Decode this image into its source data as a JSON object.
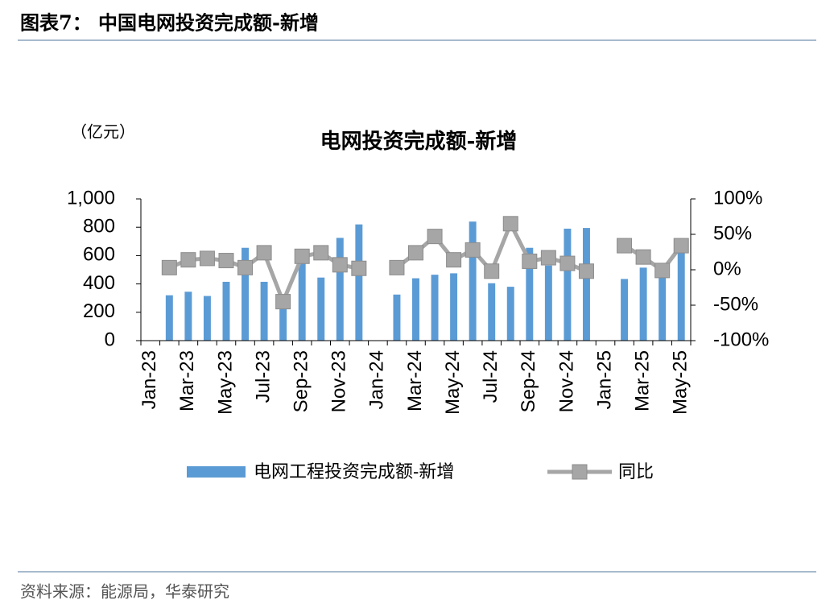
{
  "header": {
    "title": "图表7：  中国电网投资完成额-新增"
  },
  "chart_data": {
    "type": "bar-line",
    "title": "电网投资完成额-新增",
    "y_label": "（亿元）",
    "categories": [
      "Jan-23",
      null,
      "Mar-23",
      null,
      "May-23",
      null,
      "Jul-23",
      null,
      "Sep-23",
      null,
      "Nov-23",
      null,
      "Jan-24",
      null,
      "Mar-24",
      null,
      "May-24",
      null,
      "Jul-24",
      null,
      "Sep-24",
      null,
      "Nov-24",
      null,
      "Jan-25",
      null,
      "Mar-25",
      null,
      "May-25"
    ],
    "series": [
      {
        "name": "电网工程投资完成额-新增",
        "color": "#5b9bd5",
        "values": [
          null,
          320,
          345,
          315,
          415,
          655,
          415,
          270,
          560,
          445,
          725,
          820,
          null,
          325,
          440,
          465,
          475,
          840,
          405,
          380,
          655,
          530,
          790,
          795,
          null,
          435,
          515,
          480,
          640
        ]
      },
      {
        "name": "同比",
        "color": "#a6a6a6",
        "axis": "y2",
        "values": [
          null,
          3,
          14,
          16,
          13,
          3,
          24,
          -45,
          19,
          24,
          7,
          2,
          null,
          3,
          24,
          47,
          14,
          28,
          -2,
          65,
          12,
          17,
          9,
          -2,
          null,
          34,
          18,
          -1,
          34
        ]
      }
    ],
    "ylim": [
      0,
      1000
    ],
    "yticks": [
      0,
      200,
      400,
      600,
      800,
      {
        "value": 1000,
        "label": "1,000"
      }
    ],
    "y2lim": [
      -100,
      100
    ],
    "y2ticks": [
      {
        "value": -100,
        "label": "-100%"
      },
      {
        "value": -50,
        "label": "-50%"
      },
      {
        "value": 0,
        "label": "0%"
      },
      {
        "value": 50,
        "label": "50%"
      },
      {
        "value": 100,
        "label": "100%"
      }
    ]
  },
  "footer": {
    "source": "资料来源：能源局，华泰研究"
  }
}
